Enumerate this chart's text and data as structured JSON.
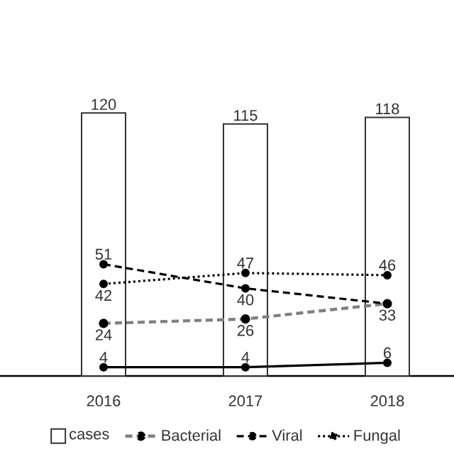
{
  "chart_data": {
    "type": "bar",
    "categories": [
      "2016",
      "2017",
      "2018"
    ],
    "legend": "bottom",
    "marker": "circle",
    "series": [
      {
        "name": "cases",
        "color": "#ffffff",
        "values": [
          120,
          115,
          118
        ],
        "value_labels": [
          "120",
          "115",
          "118"
        ]
      },
      {
        "name": "Bacterial",
        "type": "line",
        "color": "#808080",
        "line_style": "dashed",
        "values": [
          24,
          26,
          33
        ],
        "value_labels": [
          "24",
          "26",
          null
        ]
      },
      {
        "name": "Viral",
        "type": "line",
        "color": "#000000",
        "line_style": "dashed",
        "values": [
          51,
          40,
          33
        ],
        "value_labels": [
          "51",
          "40",
          "33"
        ]
      },
      {
        "name": "Fungal",
        "type": "line",
        "color": "#000000",
        "line_style": "dotted",
        "values": [
          42,
          47,
          46
        ],
        "value_labels": [
          "42",
          "47",
          "46"
        ]
      },
      {
        "type": "line",
        "color": "#000000",
        "line_style": "solid",
        "values": [
          4,
          4,
          6
        ],
        "value_labels": [
          "4",
          "4",
          "6"
        ]
      }
    ]
  }
}
